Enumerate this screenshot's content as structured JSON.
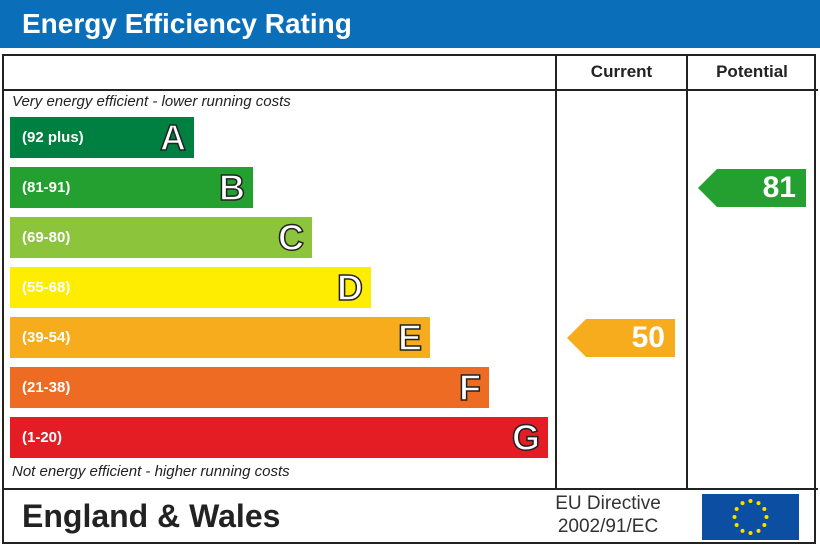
{
  "title": "Energy Efficiency Rating",
  "columns": {
    "current": "Current",
    "potential": "Potential"
  },
  "notes": {
    "top": "Very energy efficient - lower running costs",
    "bottom": "Not energy efficient - higher running costs"
  },
  "footer": {
    "country": "England & Wales",
    "directive_line1": "EU Directive",
    "directive_line2": "2002/91/EC"
  },
  "chart_data": {
    "type": "bar",
    "bands": [
      {
        "letter": "A",
        "range": "(92 plus)",
        "color": "#008040"
      },
      {
        "letter": "B",
        "range": "(81-91)",
        "color": "#23a030"
      },
      {
        "letter": "C",
        "range": "(69-80)",
        "color": "#8cc43c"
      },
      {
        "letter": "D",
        "range": "(55-68)",
        "color": "#ffed00"
      },
      {
        "letter": "E",
        "range": "(39-54)",
        "color": "#f7ac1e"
      },
      {
        "letter": "F",
        "range": "(21-38)",
        "color": "#ed6b23"
      },
      {
        "letter": "G",
        "range": "(1-20)",
        "color": "#e31d23"
      }
    ],
    "current": {
      "value": "50",
      "band": "E",
      "color": "#f7ac1e"
    },
    "potential": {
      "value": "81",
      "band": "B",
      "color": "#23a030"
    }
  }
}
